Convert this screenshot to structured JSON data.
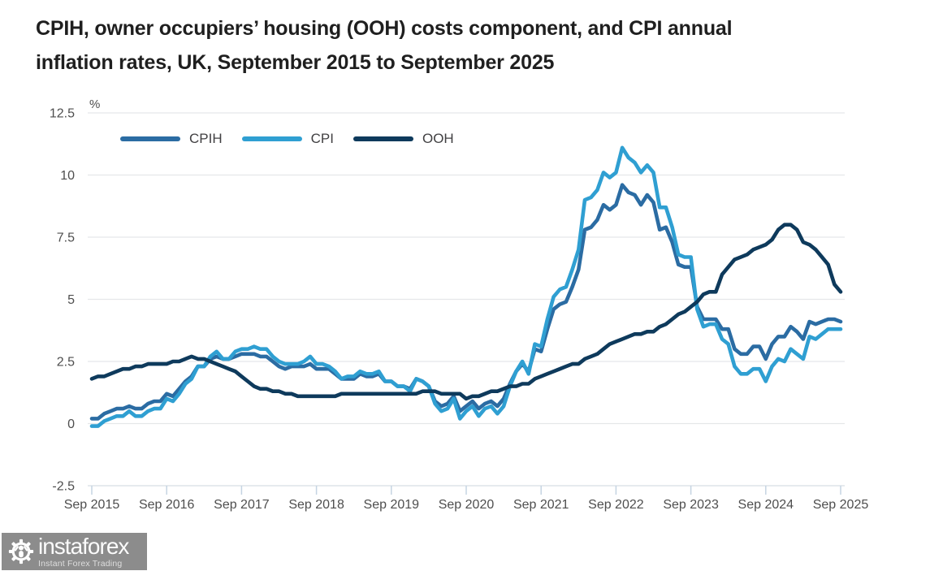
{
  "title": {
    "line1": "CPIH, owner occupiers’ housing (OOH) costs component, and CPI annual",
    "line2": "inflation rates, UK, September 2015 to September 2025"
  },
  "legend": [
    "CPIH",
    "CPI",
    "OOH"
  ],
  "watermark": {
    "brand": "instaforex",
    "tagline": "Instant Forex Trading",
    "bg_color": "#8c8c8c"
  },
  "colors": {
    "cpih": "#2b6ca3",
    "cpi": "#2f9fd2",
    "ooh": "#0e3a5c",
    "gridline": "#e5e7e9",
    "axis_line": "#d6dde3",
    "axis_tick": "#c5d4e2",
    "tick_label": "#4e4e4e",
    "title_text": "#1f1f1f"
  },
  "chart_data": {
    "type": "line",
    "title": "CPIH, owner occupiers’ housing (OOH) costs component, and CPI annual inflation rates, UK, September 2015 to September 2025",
    "ylabel": "%",
    "xlabel": "",
    "ylim": [
      -2.5,
      12.5
    ],
    "yticks": [
      12.5,
      10,
      7.5,
      5,
      2.5,
      0,
      -2.5
    ],
    "ytick_labels": [
      "12.5",
      "10",
      "7.5",
      "5",
      "2.5",
      "0",
      "-2.5"
    ],
    "xticklabels": [
      "Sep 2015",
      "Sep 2016",
      "Sep 2017",
      "Sep 2018",
      "Sep 2019",
      "Sep 2020",
      "Sep 2021",
      "Sep 2022",
      "Sep 2023",
      "Sep 2024",
      "Sep 2025"
    ],
    "x_start": "2015-09",
    "x_end": "2025-09",
    "frequency": "monthly",
    "grid": true,
    "legend_position": "top-left",
    "series": [
      {
        "name": "CPIH",
        "color": "#2b6ca3",
        "values": [
          0.2,
          0.2,
          0.4,
          0.5,
          0.6,
          0.6,
          0.7,
          0.6,
          0.6,
          0.8,
          0.9,
          0.9,
          1.2,
          1.1,
          1.4,
          1.7,
          1.9,
          2.3,
          2.3,
          2.6,
          2.7,
          2.6,
          2.6,
          2.7,
          2.8,
          2.8,
          2.8,
          2.7,
          2.7,
          2.5,
          2.3,
          2.2,
          2.3,
          2.3,
          2.3,
          2.4,
          2.2,
          2.2,
          2.2,
          2.0,
          1.8,
          1.8,
          1.8,
          2.0,
          1.9,
          1.9,
          2.0,
          1.7,
          1.7,
          1.5,
          1.5,
          1.4,
          1.8,
          1.7,
          1.5,
          0.9,
          0.7,
          0.8,
          1.1,
          0.5,
          0.7,
          0.9,
          0.6,
          0.8,
          0.9,
          0.7,
          1.0,
          1.6,
          2.1,
          2.4,
          2.1,
          3.0,
          2.9,
          3.8,
          4.6,
          4.8,
          4.9,
          5.5,
          6.2,
          7.8,
          7.9,
          8.2,
          8.8,
          8.6,
          8.8,
          9.6,
          9.3,
          9.2,
          8.8,
          9.2,
          8.9,
          7.8,
          7.9,
          7.3,
          6.4,
          6.3,
          6.3,
          4.7,
          4.2,
          4.2,
          4.2,
          3.8,
          3.8,
          3.0,
          2.8,
          2.8,
          3.1,
          3.1,
          2.6,
          3.2,
          3.5,
          3.5,
          3.9,
          3.7,
          3.4,
          4.1,
          4.0,
          4.1,
          4.2,
          4.2,
          4.1
        ]
      },
      {
        "name": "CPI",
        "color": "#2f9fd2",
        "values": [
          -0.1,
          -0.1,
          0.1,
          0.2,
          0.3,
          0.3,
          0.5,
          0.3,
          0.3,
          0.5,
          0.6,
          0.6,
          1.0,
          0.9,
          1.2,
          1.6,
          1.8,
          2.3,
          2.3,
          2.7,
          2.9,
          2.6,
          2.6,
          2.9,
          3.0,
          3.0,
          3.1,
          3.0,
          3.0,
          2.7,
          2.5,
          2.4,
          2.4,
          2.4,
          2.5,
          2.7,
          2.4,
          2.4,
          2.3,
          2.1,
          1.8,
          1.9,
          1.9,
          2.1,
          2.0,
          2.0,
          2.1,
          1.7,
          1.7,
          1.5,
          1.5,
          1.3,
          1.8,
          1.7,
          1.5,
          0.8,
          0.5,
          0.6,
          1.0,
          0.2,
          0.5,
          0.7,
          0.3,
          0.6,
          0.7,
          0.4,
          0.7,
          1.5,
          2.1,
          2.5,
          2.0,
          3.2,
          3.1,
          4.2,
          5.1,
          5.4,
          5.5,
          6.2,
          7.0,
          9.0,
          9.1,
          9.4,
          10.1,
          9.9,
          10.1,
          11.1,
          10.7,
          10.5,
          10.1,
          10.4,
          10.1,
          8.7,
          8.7,
          7.9,
          6.8,
          6.7,
          6.7,
          4.6,
          3.9,
          4.0,
          4.0,
          3.4,
          3.2,
          2.3,
          2.0,
          2.0,
          2.2,
          2.2,
          1.7,
          2.3,
          2.6,
          2.5,
          3.0,
          2.8,
          2.6,
          3.5,
          3.4,
          3.6,
          3.8,
          3.8,
          3.8
        ]
      },
      {
        "name": "OOH",
        "color": "#0e3a5c",
        "values": [
          1.8,
          1.9,
          1.9,
          2.0,
          2.1,
          2.2,
          2.2,
          2.3,
          2.3,
          2.4,
          2.4,
          2.4,
          2.4,
          2.5,
          2.5,
          2.6,
          2.7,
          2.6,
          2.6,
          2.5,
          2.4,
          2.3,
          2.2,
          2.1,
          1.9,
          1.7,
          1.5,
          1.4,
          1.4,
          1.3,
          1.3,
          1.2,
          1.2,
          1.1,
          1.1,
          1.1,
          1.1,
          1.1,
          1.1,
          1.1,
          1.2,
          1.2,
          1.2,
          1.2,
          1.2,
          1.2,
          1.2,
          1.2,
          1.2,
          1.2,
          1.2,
          1.2,
          1.2,
          1.3,
          1.3,
          1.3,
          1.2,
          1.2,
          1.2,
          1.2,
          1.0,
          1.1,
          1.1,
          1.2,
          1.3,
          1.3,
          1.4,
          1.5,
          1.5,
          1.6,
          1.6,
          1.8,
          1.9,
          2.0,
          2.1,
          2.2,
          2.3,
          2.4,
          2.4,
          2.6,
          2.7,
          2.8,
          3.0,
          3.2,
          3.3,
          3.4,
          3.5,
          3.6,
          3.6,
          3.7,
          3.7,
          3.9,
          4.0,
          4.2,
          4.4,
          4.5,
          4.7,
          4.9,
          5.2,
          5.3,
          5.3,
          6.0,
          6.3,
          6.6,
          6.7,
          6.8,
          7.0,
          7.1,
          7.2,
          7.4,
          7.8,
          8.0,
          8.0,
          7.8,
          7.3,
          7.2,
          7.0,
          6.7,
          6.4,
          5.6,
          5.3
        ]
      }
    ]
  }
}
